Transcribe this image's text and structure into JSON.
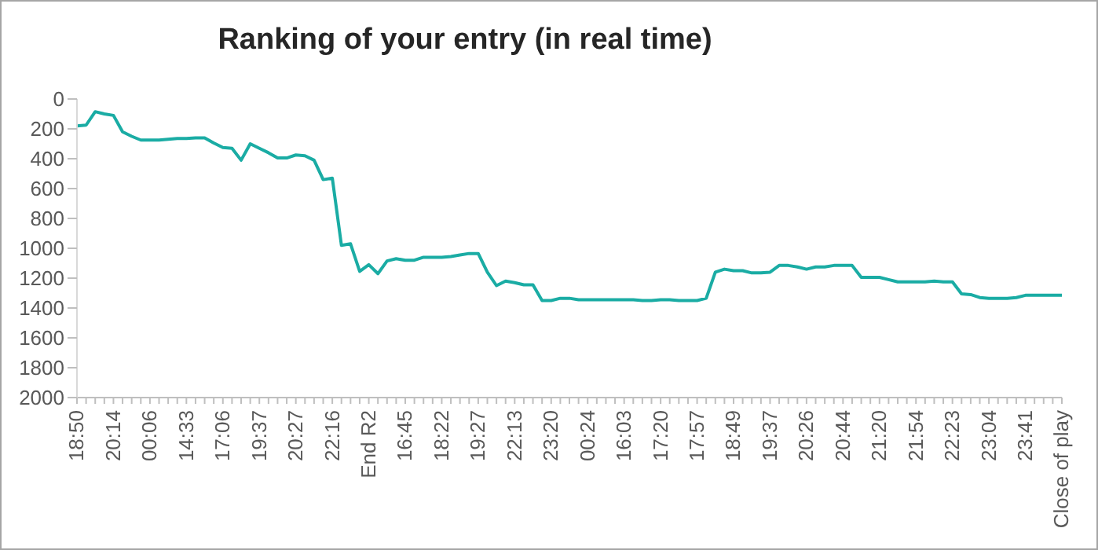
{
  "chart_data": {
    "type": "line",
    "title": "Ranking of your entry (in real time)",
    "categories": [
      "18:50",
      null,
      null,
      null,
      "20:14",
      null,
      null,
      null,
      "00:06",
      null,
      null,
      null,
      "14:33",
      null,
      null,
      null,
      "17:06",
      null,
      null,
      null,
      "19:37",
      null,
      null,
      null,
      "20:27",
      null,
      null,
      null,
      "22:16",
      null,
      null,
      null,
      "End R2",
      null,
      null,
      null,
      "16:45",
      null,
      null,
      null,
      "18:22",
      null,
      null,
      null,
      "19:27",
      null,
      null,
      null,
      "22:13",
      null,
      null,
      null,
      "23:20",
      null,
      null,
      null,
      "00:24",
      null,
      null,
      null,
      "16:03",
      null,
      null,
      null,
      "17:20",
      null,
      null,
      null,
      "17:57",
      null,
      null,
      null,
      "18:49",
      null,
      null,
      null,
      "19:37",
      null,
      null,
      null,
      "20:26",
      null,
      null,
      null,
      "20:44",
      null,
      null,
      null,
      "21:20",
      null,
      null,
      null,
      "21:54",
      null,
      null,
      null,
      "22:23",
      null,
      null,
      null,
      "23:04",
      null,
      null,
      null,
      "23:41",
      null,
      null,
      null,
      "Close of play"
    ],
    "values": [
      180,
      175,
      85,
      100,
      110,
      220,
      250,
      275,
      275,
      275,
      270,
      265,
      265,
      260,
      260,
      295,
      325,
      330,
      410,
      300,
      330,
      360,
      395,
      395,
      375,
      380,
      410,
      540,
      530,
      980,
      970,
      1155,
      1110,
      1170,
      1085,
      1070,
      1080,
      1080,
      1060,
      1060,
      1060,
      1055,
      1045,
      1035,
      1035,
      1160,
      1250,
      1220,
      1230,
      1245,
      1245,
      1350,
      1350,
      1335,
      1335,
      1345,
      1345,
      1345,
      1345,
      1345,
      1345,
      1345,
      1350,
      1350,
      1345,
      1345,
      1350,
      1350,
      1350,
      1335,
      1160,
      1140,
      1150,
      1150,
      1165,
      1165,
      1160,
      1115,
      1115,
      1125,
      1140,
      1125,
      1125,
      1115,
      1115,
      1115,
      1195,
      1195,
      1195,
      1210,
      1225,
      1225,
      1225,
      1225,
      1220,
      1225,
      1225,
      1305,
      1310,
      1330,
      1335,
      1335,
      1335,
      1330,
      1315,
      1315,
      1315,
      1315,
      1315
    ],
    "color": "#1aaca4",
    "marker": "none",
    "ylim": [
      2000,
      0
    ],
    "yticks": [
      0,
      200,
      400,
      600,
      800,
      1000,
      1200,
      1400,
      1600,
      1800,
      2000
    ]
  }
}
